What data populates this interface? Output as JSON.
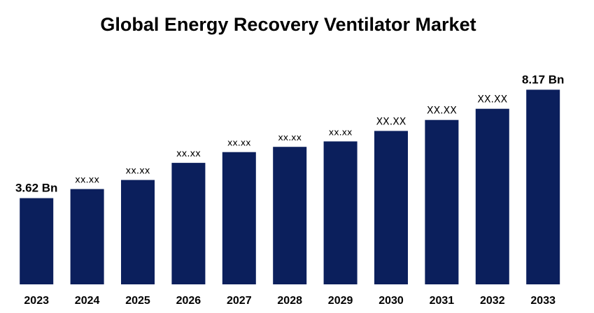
{
  "chart_data": {
    "type": "bar",
    "title": "Global Energy Recovery Ventilator Market",
    "xlabel": "",
    "ylabel": "",
    "categories": [
      "2023",
      "2024",
      "2025",
      "2026",
      "2027",
      "2028",
      "2029",
      "2030",
      "2031",
      "2032",
      "2033"
    ],
    "values": [
      3.62,
      4.0,
      4.38,
      5.1,
      5.55,
      5.77,
      6.0,
      6.44,
      6.9,
      7.37,
      8.17
    ],
    "data_labels": [
      "3.62 Bn",
      "xx.xx",
      "xx.xx",
      "xx.xx",
      "xx.xx",
      "xx.xx",
      "xx.xx",
      "XX.XX",
      "XX.XX",
      "XX.XX",
      "8.17 Bn"
    ],
    "ylim": [
      0,
      9.2
    ],
    "grid": false,
    "legend": "none",
    "bar_color": "#0b1f5c"
  }
}
